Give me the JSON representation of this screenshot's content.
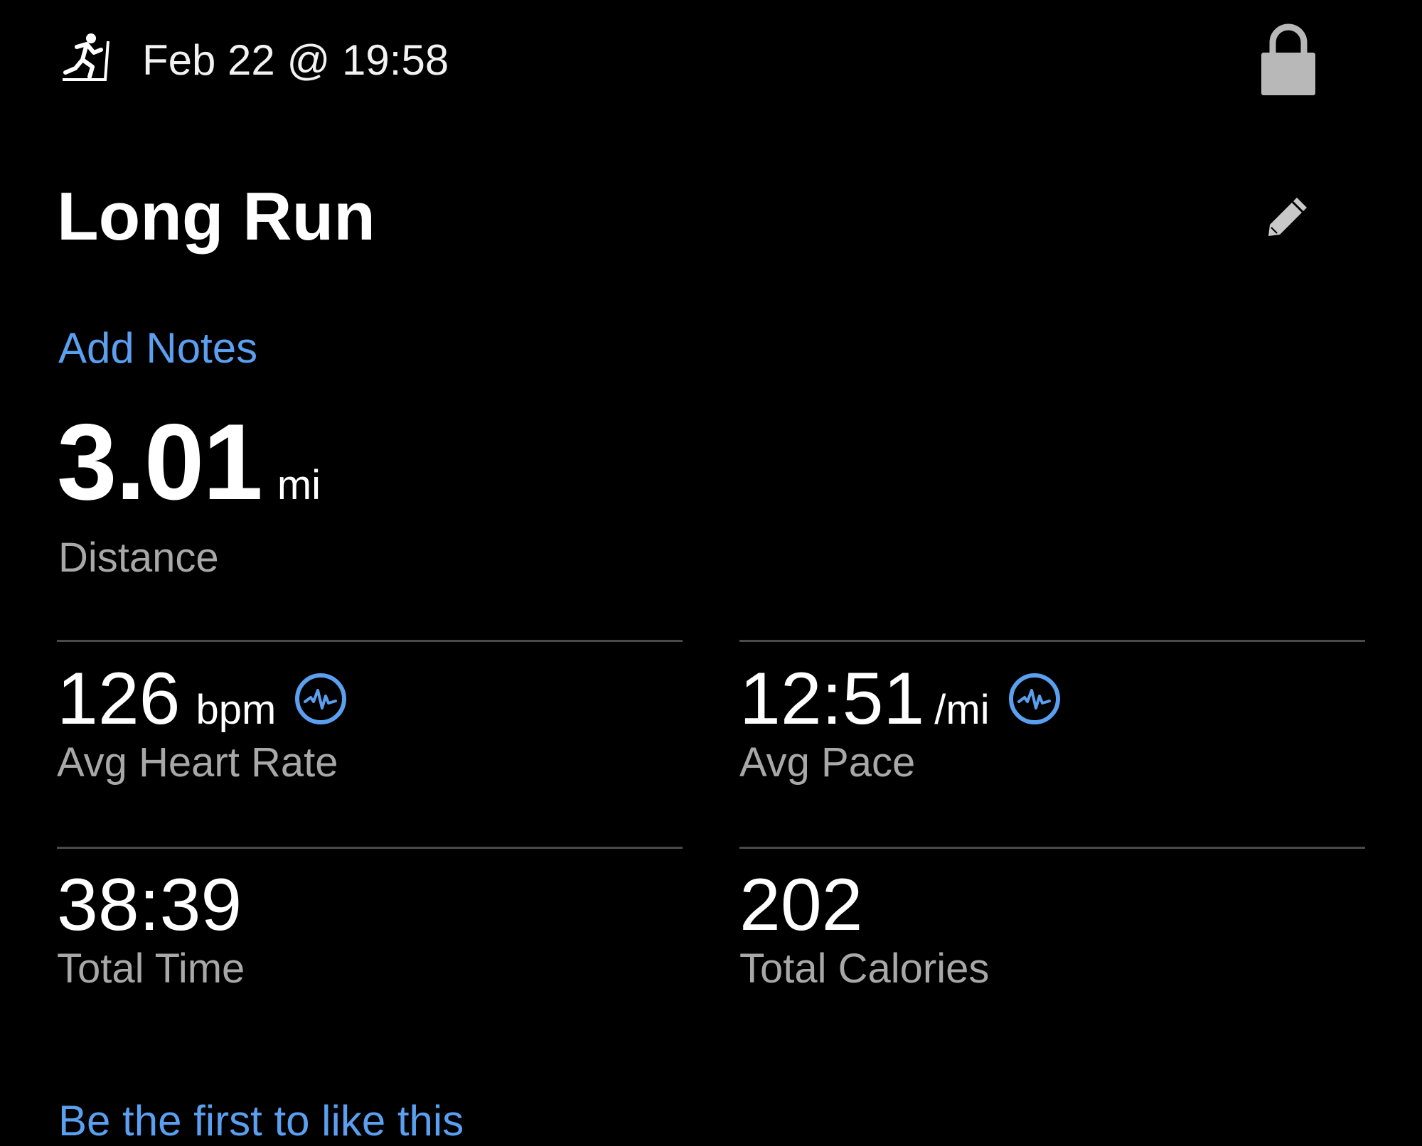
{
  "header": {
    "activity_icon": "treadmill-run-icon",
    "date": "Feb 22 @ 19:58",
    "lock_icon": "lock-icon"
  },
  "activity": {
    "title": "Long Run",
    "edit_icon": "pencil-icon",
    "add_notes": "Add Notes"
  },
  "distance": {
    "value": "3.01",
    "unit": "mi",
    "label": "Distance"
  },
  "stats": [
    {
      "value": "126",
      "unit": "bpm",
      "label": "Avg Heart Rate",
      "icon": "heart-rate-chart-icon"
    },
    {
      "value": "12:51",
      "unit": "/mi",
      "label": "Avg Pace",
      "icon": "pace-chart-icon"
    },
    {
      "value": "38:39",
      "unit": "",
      "label": "Total Time"
    },
    {
      "value": "202",
      "unit": "",
      "label": "Total Calories"
    }
  ],
  "social": {
    "like_prompt": "Be the first to like this"
  },
  "colors": {
    "accent": "#5b9ff0",
    "background": "#000000",
    "label": "#a8a8a8",
    "divider": "#4a4a4a"
  }
}
